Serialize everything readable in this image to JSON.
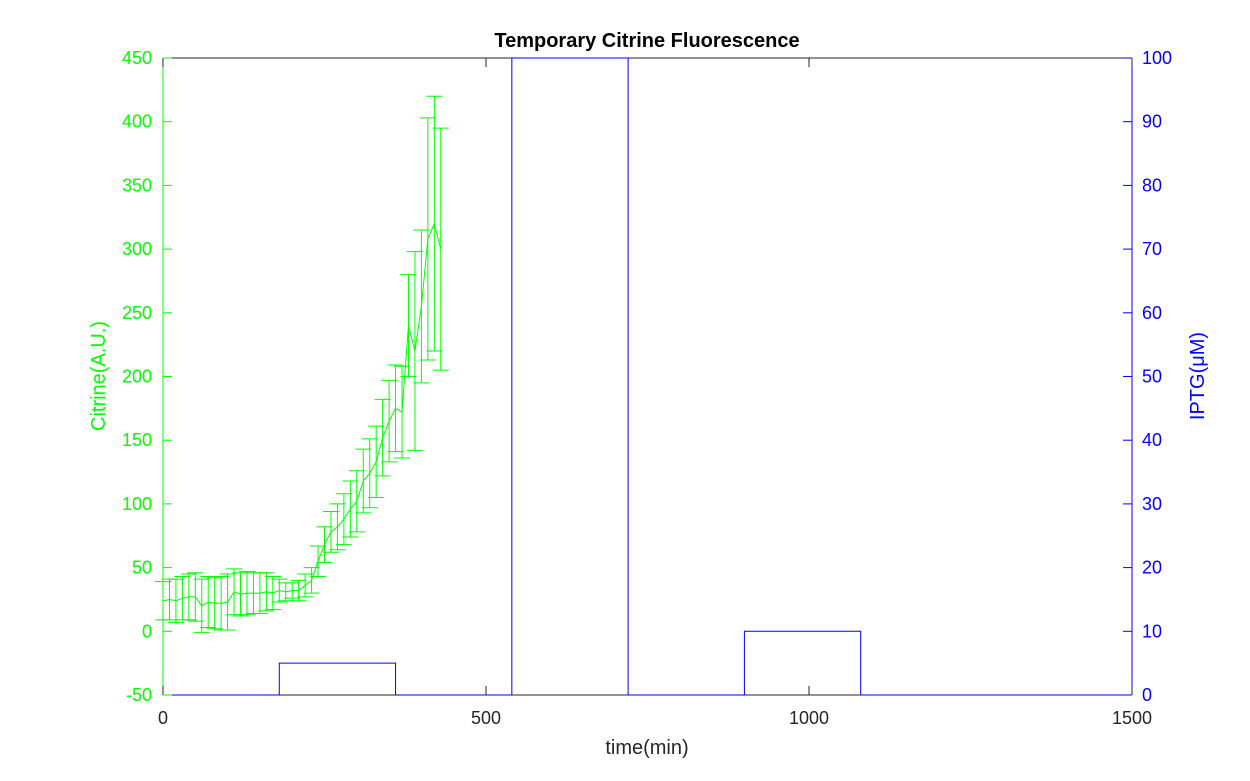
{
  "chart_data": {
    "type": "line",
    "title": "Temporary Citrine Fluorescence",
    "xlabel": "time(min)",
    "ylabel_left": "Citrine(A.U.)",
    "ylabel_right": "IPTG(μM)",
    "xlim": [
      0,
      1500
    ],
    "ylim_left": [
      -50,
      450
    ],
    "ylim_right": [
      0,
      100
    ],
    "xticks": [
      "0",
      "500",
      "1000",
      "1500"
    ],
    "yticks_left": [
      "-50",
      "0",
      "50",
      "100",
      "150",
      "200",
      "250",
      "300",
      "350",
      "400",
      "450"
    ],
    "yticks_right": [
      "0",
      "10",
      "20",
      "30",
      "40",
      "50",
      "60",
      "70",
      "80",
      "90",
      "100"
    ],
    "colors": {
      "citrine": "#00ff00",
      "iptg": "#0000ff",
      "title": "#000000",
      "axis": "#262626"
    },
    "series": [
      {
        "axis": "left",
        "kind": "line-errorbar",
        "x": [
          0,
          10,
          20,
          30,
          40,
          50,
          60,
          70,
          80,
          90,
          100,
          110,
          120,
          130,
          140,
          150,
          160,
          170,
          180,
          190,
          200,
          210,
          220,
          230,
          240,
          250,
          260,
          270,
          280,
          290,
          300,
          310,
          320,
          330,
          340,
          350,
          360,
          370,
          380,
          390,
          400,
          410,
          420,
          430
        ],
        "y": [
          24,
          25,
          24,
          26,
          27,
          27,
          20,
          23,
          22,
          22,
          23,
          31,
          29,
          30,
          30,
          30,
          31,
          30,
          32,
          31,
          32,
          32,
          36,
          40,
          55,
          68,
          78,
          82,
          88,
          96,
          102,
          118,
          124,
          133,
          152,
          165,
          175,
          172,
          240,
          220,
          255,
          308,
          320,
          300
        ],
        "err": [
          15,
          16,
          17,
          17,
          18,
          19,
          21,
          20,
          20,
          21,
          22,
          18,
          17,
          17,
          16,
          16,
          15,
          13,
          9,
          7,
          6,
          8,
          9,
          10,
          12,
          14,
          16,
          18,
          20,
          22,
          24,
          25,
          27,
          28,
          30,
          32,
          34,
          36,
          40,
          78,
          60,
          95,
          100,
          95
        ]
      },
      {
        "axis": "right",
        "kind": "stairs",
        "x": [
          0,
          180,
          180,
          360,
          360,
          540,
          540,
          720,
          720,
          900,
          900,
          1080,
          1080,
          1500
        ],
        "y": [
          0,
          0,
          5,
          5,
          0,
          0,
          100,
          100,
          0,
          0,
          10,
          10,
          0,
          0
        ]
      }
    ]
  }
}
